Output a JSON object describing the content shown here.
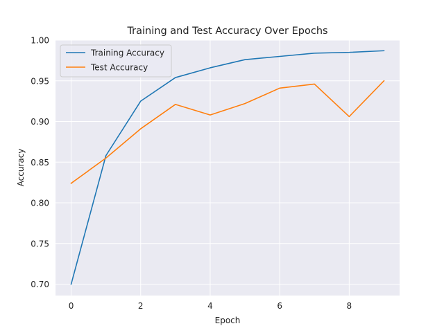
{
  "chart_data": {
    "type": "line",
    "title": "Training and Test Accuracy Over Epochs",
    "xlabel": "Epoch",
    "ylabel": "Accuracy",
    "x": [
      0,
      1,
      2,
      3,
      4,
      5,
      6,
      7,
      8,
      9
    ],
    "series": [
      {
        "name": "Training Accuracy",
        "color": "#1f77b4",
        "values": [
          0.7,
          0.858,
          0.925,
          0.954,
          0.966,
          0.976,
          0.98,
          0.984,
          0.985,
          0.987
        ]
      },
      {
        "name": "Test Accuracy",
        "color": "#ff7f0e",
        "values": [
          0.824,
          0.855,
          0.891,
          0.921,
          0.908,
          0.922,
          0.941,
          0.946,
          0.906,
          0.95
        ]
      }
    ],
    "xlim": [
      -0.45,
      9.45
    ],
    "ylim": [
      0.686,
      1.0
    ],
    "xticks": [
      0,
      2,
      4,
      6,
      8
    ],
    "yticks": [
      0.7,
      0.75,
      0.8,
      0.85,
      0.9,
      0.95,
      1.0
    ],
    "xtick_labels": [
      "0",
      "2",
      "4",
      "6",
      "8"
    ],
    "ytick_labels": [
      "0.70",
      "0.75",
      "0.80",
      "0.85",
      "0.90",
      "0.95",
      "1.00"
    ],
    "grid": true,
    "legend_position": "upper-left",
    "background_color": "#eaeaf2",
    "grid_color": "#ffffff"
  }
}
